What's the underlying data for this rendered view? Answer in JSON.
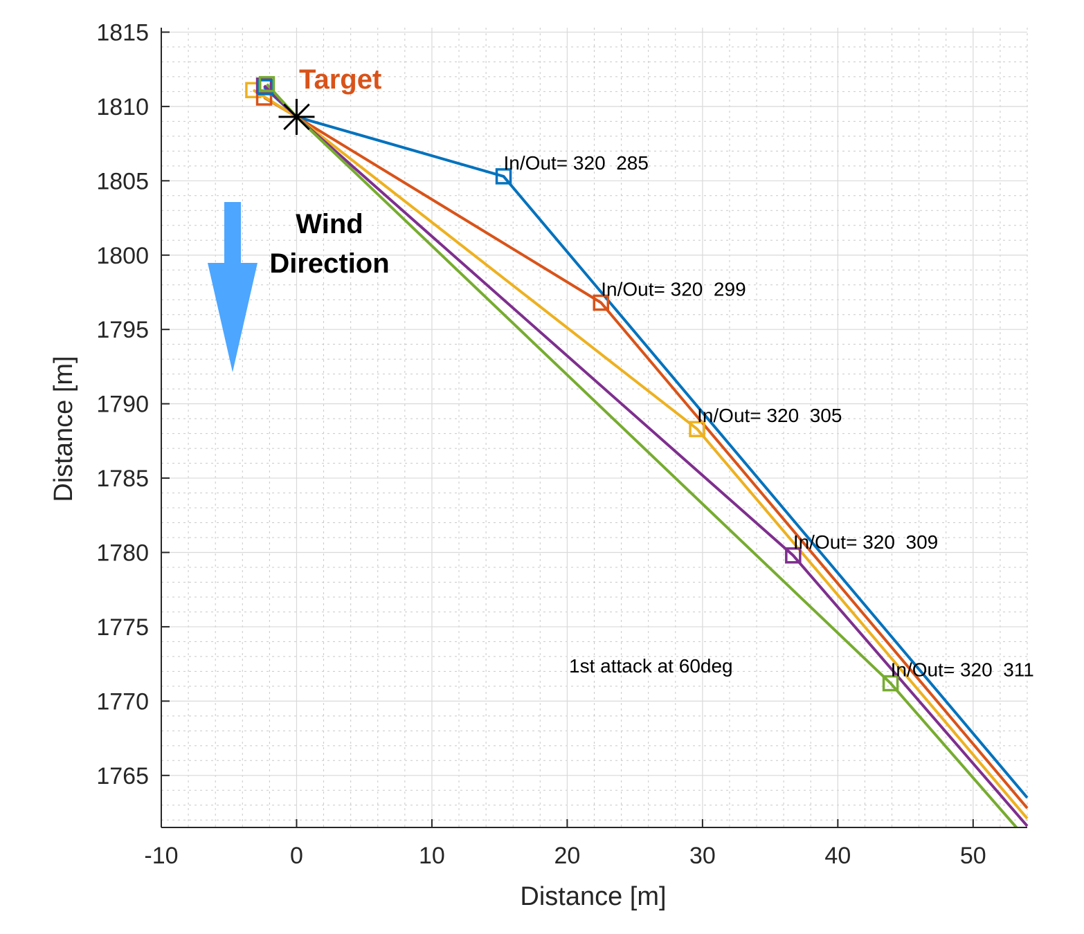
{
  "chart_data": {
    "type": "line",
    "title": "",
    "xlabel": "Distance [m]",
    "ylabel": "Distance [m]",
    "xlim": [
      -10,
      54
    ],
    "ylim": [
      1761.5,
      1815.3
    ],
    "x_ticks": [
      -10,
      0,
      10,
      20,
      30,
      40,
      50
    ],
    "y_ticks": [
      1765,
      1770,
      1775,
      1780,
      1785,
      1790,
      1795,
      1800,
      1805,
      1810,
      1815
    ],
    "grid": true,
    "minor_grid": true,
    "legend": "none",
    "target": {
      "label": "Target",
      "x": 0,
      "y": 1809.3,
      "color": "#D95319"
    },
    "wind": {
      "label_line1": "Wind",
      "label_line2": "Direction",
      "direction": "down",
      "color": "#4DA6FF"
    },
    "note": "1st attack at 60deg",
    "series": [
      {
        "color": "#0072BD",
        "points": [
          [
            -2.4,
            1811.3
          ],
          [
            0,
            1809.3
          ],
          [
            15.3,
            1805.3
          ],
          [
            54,
            1763.5
          ]
        ],
        "marker": [
          15.3,
          1805.3
        ],
        "annotation": "In/Out= 320  285"
      },
      {
        "color": "#D95319",
        "points": [
          [
            -2.4,
            1810.6
          ],
          [
            0,
            1809.3
          ],
          [
            22.5,
            1796.8
          ],
          [
            54,
            1762.8
          ]
        ],
        "marker": [
          22.5,
          1796.8
        ],
        "annotation": "In/Out= 320  299"
      },
      {
        "color": "#EDB120",
        "points": [
          [
            -3.2,
            1811.1
          ],
          [
            0,
            1809.3
          ],
          [
            29.6,
            1788.3
          ],
          [
            54,
            1762.1
          ]
        ],
        "marker": [
          29.6,
          1788.3
        ],
        "annotation": "In/Out= 320  305"
      },
      {
        "color": "#7E2F8E",
        "points": [
          [
            -2.4,
            1811.4
          ],
          [
            0,
            1809.3
          ],
          [
            36.7,
            1779.8
          ],
          [
            54,
            1761.6
          ]
        ],
        "marker": [
          36.7,
          1779.8
        ],
        "annotation": "In/Out= 320  309"
      },
      {
        "color": "#77AC30",
        "points": [
          [
            -2.2,
            1811.5
          ],
          [
            0,
            1809.3
          ],
          [
            43.9,
            1771.2
          ],
          [
            53.2,
            1761.5
          ]
        ],
        "marker": [
          43.9,
          1771.2
        ],
        "annotation": "In/Out= 320  311"
      }
    ],
    "start_markers": [
      {
        "x": -3.2,
        "y": 1811.1,
        "color": "#EDB120"
      },
      {
        "x": -2.4,
        "y": 1810.6,
        "color": "#D95319"
      },
      {
        "x": -2.4,
        "y": 1811.4,
        "color": "#7E2F8E"
      },
      {
        "x": -2.3,
        "y": 1811.3,
        "color": "#0072BD"
      },
      {
        "x": -2.2,
        "y": 1811.5,
        "color": "#77AC30"
      }
    ]
  }
}
